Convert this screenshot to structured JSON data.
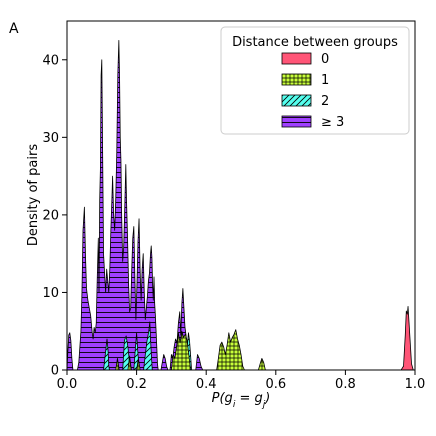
{
  "panel_label": "A",
  "chart_data": {
    "type": "area",
    "title": "",
    "xlabel": "P(g_i = g_j)",
    "ylabel": "Density of pairs",
    "xlim": [
      0.0,
      1.0
    ],
    "ylim": [
      0,
      45
    ],
    "xticks": [
      "0.0",
      "0.2",
      "0.4",
      "0.6",
      "0.8",
      "1.0"
    ],
    "yticks": [
      "0",
      "10",
      "20",
      "30",
      "40"
    ],
    "legend": {
      "title": "Distance between groups",
      "placement": "top-right"
    },
    "grid": false,
    "series": [
      {
        "name": "0",
        "color": "#ff5577",
        "hatch": "none",
        "points": [
          [
            0.96,
            0
          ],
          [
            0.967,
            0.5
          ],
          [
            0.972,
            4.5
          ],
          [
            0.975,
            7.6
          ],
          [
            0.978,
            7.2
          ],
          [
            0.98,
            8.2
          ],
          [
            0.983,
            6.0
          ],
          [
            0.987,
            3.0
          ],
          [
            0.99,
            0.8
          ],
          [
            0.995,
            0
          ]
        ]
      },
      {
        "name": "1",
        "color": "#c8ff3a",
        "hatch": "grid",
        "points": [
          [
            0.14,
            0
          ],
          [
            0.145,
            1.5
          ],
          [
            0.15,
            0
          ],
          [
            0.175,
            0
          ],
          [
            0.18,
            1.8
          ],
          [
            0.185,
            0
          ],
          [
            0.2,
            0
          ],
          [
            0.205,
            1.5
          ],
          [
            0.21,
            0
          ],
          [
            0.3,
            0
          ],
          [
            0.305,
            2.0
          ],
          [
            0.31,
            1.5
          ],
          [
            0.315,
            3.0
          ],
          [
            0.32,
            4.8
          ],
          [
            0.325,
            3.5
          ],
          [
            0.33,
            5.0
          ],
          [
            0.335,
            4.2
          ],
          [
            0.34,
            4.6
          ],
          [
            0.345,
            3.8
          ],
          [
            0.35,
            2.0
          ],
          [
            0.355,
            0
          ],
          [
            0.43,
            0
          ],
          [
            0.435,
            1.5
          ],
          [
            0.44,
            3.2
          ],
          [
            0.445,
            3.6
          ],
          [
            0.45,
            3.0
          ],
          [
            0.455,
            2.0
          ],
          [
            0.46,
            3.2
          ],
          [
            0.465,
            4.8
          ],
          [
            0.47,
            3.6
          ],
          [
            0.475,
            4.2
          ],
          [
            0.48,
            4.6
          ],
          [
            0.485,
            5.2
          ],
          [
            0.49,
            4.0
          ],
          [
            0.495,
            3.2
          ],
          [
            0.5,
            2.0
          ],
          [
            0.505,
            0.5
          ],
          [
            0.51,
            0
          ],
          [
            0.55,
            0
          ],
          [
            0.555,
            0.8
          ],
          [
            0.56,
            1.5
          ],
          [
            0.565,
            1.0
          ],
          [
            0.57,
            0
          ]
        ]
      },
      {
        "name": "2",
        "color": "#55ffee",
        "hatch": "diagonal",
        "points": [
          [
            0.105,
            0
          ],
          [
            0.11,
            2.0
          ],
          [
            0.115,
            4.0
          ],
          [
            0.118,
            2.5
          ],
          [
            0.12,
            0.5
          ],
          [
            0.122,
            0
          ],
          [
            0.16,
            0
          ],
          [
            0.165,
            3.8
          ],
          [
            0.17,
            4.4
          ],
          [
            0.175,
            3.0
          ],
          [
            0.18,
            0.8
          ],
          [
            0.185,
            0
          ],
          [
            0.192,
            0
          ],
          [
            0.196,
            2.5
          ],
          [
            0.2,
            4.8
          ],
          [
            0.204,
            2.0
          ],
          [
            0.208,
            0
          ],
          [
            0.22,
            0
          ],
          [
            0.225,
            2.0
          ],
          [
            0.23,
            3.8
          ],
          [
            0.235,
            5.0
          ],
          [
            0.238,
            6.2
          ],
          [
            0.24,
            4.0
          ],
          [
            0.243,
            1.5
          ],
          [
            0.245,
            0
          ],
          [
            0.305,
            0
          ],
          [
            0.31,
            1.0
          ],
          [
            0.315,
            3.0
          ],
          [
            0.32,
            4.2
          ],
          [
            0.325,
            2.0
          ],
          [
            0.33,
            0
          ],
          [
            0.34,
            0
          ],
          [
            0.343,
            1.0
          ],
          [
            0.346,
            3.2
          ],
          [
            0.349,
            4.8
          ],
          [
            0.352,
            3.8
          ],
          [
            0.355,
            2.0
          ],
          [
            0.358,
            0
          ]
        ]
      },
      {
        "name": "≥ 3",
        "color": "#a040ff",
        "hatch": "horizontal",
        "points": [
          [
            0.0,
            0
          ],
          [
            0.002,
            2.0
          ],
          [
            0.005,
            4.5
          ],
          [
            0.008,
            4.8
          ],
          [
            0.011,
            3.8
          ],
          [
            0.014,
            1.5
          ],
          [
            0.017,
            0
          ],
          [
            0.03,
            0
          ],
          [
            0.034,
            1.0
          ],
          [
            0.04,
            5.0
          ],
          [
            0.043,
            10.0
          ],
          [
            0.046,
            18.0
          ],
          [
            0.05,
            21.0
          ],
          [
            0.053,
            15.0
          ],
          [
            0.056,
            10.5
          ],
          [
            0.06,
            9.0
          ],
          [
            0.064,
            8.0
          ],
          [
            0.068,
            7.0
          ],
          [
            0.072,
            5.0
          ],
          [
            0.075,
            4.0
          ],
          [
            0.078,
            5.5
          ],
          [
            0.081,
            4.8
          ],
          [
            0.084,
            6.0
          ],
          [
            0.087,
            12.0
          ],
          [
            0.09,
            17.0
          ],
          [
            0.092,
            10.0
          ],
          [
            0.094,
            22.0
          ],
          [
            0.096,
            26.0
          ],
          [
            0.098,
            38.0
          ],
          [
            0.1,
            40.0
          ],
          [
            0.102,
            30.0
          ],
          [
            0.105,
            15.0
          ],
          [
            0.108,
            12.5
          ],
          [
            0.111,
            10.0
          ],
          [
            0.114,
            13.0
          ],
          [
            0.117,
            11.5
          ],
          [
            0.12,
            10.0
          ],
          [
            0.123,
            13.0
          ],
          [
            0.126,
            18.0
          ],
          [
            0.129,
            22.0
          ],
          [
            0.131,
            25.0
          ],
          [
            0.134,
            20.0
          ],
          [
            0.137,
            18.0
          ],
          [
            0.14,
            22.0
          ],
          [
            0.143,
            28.0
          ],
          [
            0.146,
            38.0
          ],
          [
            0.149,
            42.5
          ],
          [
            0.151,
            38.0
          ],
          [
            0.153,
            30.0
          ],
          [
            0.155,
            27.0
          ],
          [
            0.157,
            20.0
          ],
          [
            0.16,
            14.0
          ],
          [
            0.163,
            16.0
          ],
          [
            0.166,
            21.0
          ],
          [
            0.169,
            26.5
          ],
          [
            0.171,
            22.0
          ],
          [
            0.174,
            17.0
          ],
          [
            0.177,
            11.0
          ],
          [
            0.18,
            7.5
          ],
          [
            0.183,
            8.0
          ],
          [
            0.186,
            13.0
          ],
          [
            0.189,
            17.0
          ],
          [
            0.192,
            18.5
          ],
          [
            0.195,
            12.0
          ],
          [
            0.198,
            6.5
          ],
          [
            0.201,
            11.0
          ],
          [
            0.204,
            16.5
          ],
          [
            0.207,
            19.5
          ],
          [
            0.21,
            13.0
          ],
          [
            0.213,
            9.0
          ],
          [
            0.216,
            13.0
          ],
          [
            0.219,
            15.0
          ],
          [
            0.222,
            10.0
          ],
          [
            0.225,
            6.5
          ],
          [
            0.228,
            8.0
          ],
          [
            0.231,
            9.5
          ],
          [
            0.234,
            11.5
          ],
          [
            0.237,
            12.5
          ],
          [
            0.24,
            15.0
          ],
          [
            0.242,
            16.0
          ],
          [
            0.244,
            14.5
          ],
          [
            0.246,
            11.0
          ],
          [
            0.248,
            9.0
          ],
          [
            0.25,
            12.0
          ],
          [
            0.252,
            8.5
          ],
          [
            0.254,
            7.0
          ],
          [
            0.256,
            5.0
          ],
          [
            0.258,
            3.0
          ],
          [
            0.26,
            0.8
          ],
          [
            0.262,
            0
          ],
          [
            0.27,
            0
          ],
          [
            0.274,
            1.0
          ],
          [
            0.278,
            2.0
          ],
          [
            0.282,
            1.5
          ],
          [
            0.286,
            0.5
          ],
          [
            0.29,
            0
          ],
          [
            0.296,
            0
          ],
          [
            0.3,
            2.0
          ],
          [
            0.304,
            1.5
          ],
          [
            0.308,
            3.0
          ],
          [
            0.312,
            4.0
          ],
          [
            0.316,
            3.5
          ],
          [
            0.32,
            6.0
          ],
          [
            0.324,
            7.5
          ],
          [
            0.327,
            4.5
          ],
          [
            0.33,
            8.5
          ],
          [
            0.333,
            10.5
          ],
          [
            0.336,
            8.0
          ],
          [
            0.339,
            5.5
          ],
          [
            0.342,
            4.5
          ],
          [
            0.345,
            3.0
          ],
          [
            0.348,
            1.5
          ],
          [
            0.352,
            0.5
          ],
          [
            0.356,
            0
          ],
          [
            0.37,
            0
          ],
          [
            0.375,
            2.0
          ],
          [
            0.38,
            1.5
          ],
          [
            0.385,
            0.5
          ],
          [
            0.39,
            0
          ]
        ]
      }
    ]
  }
}
